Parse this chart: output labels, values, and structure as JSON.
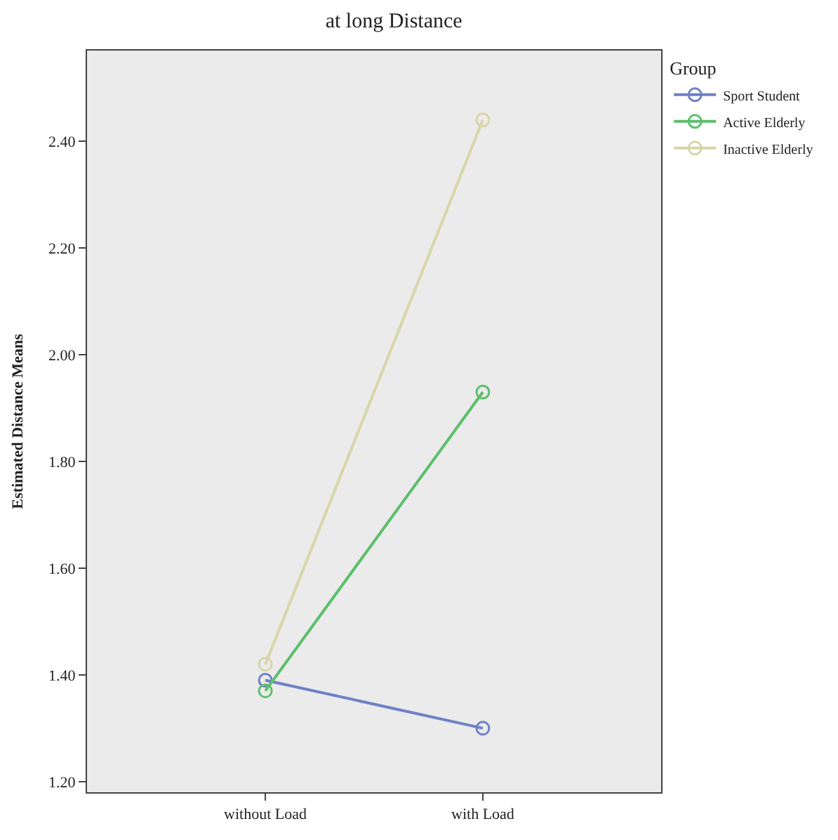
{
  "chart_data": {
    "type": "line",
    "title": "at long Distance",
    "ylabel": "Estimated Distance Means",
    "legend_title": "Group",
    "categories": [
      "without Load",
      "with Load"
    ],
    "series": [
      {
        "name": "Sport Student",
        "color": "#7080c8",
        "values": [
          1.39,
          1.3
        ]
      },
      {
        "name": "Active Elderly",
        "color": "#5cbf6a",
        "values": [
          1.37,
          1.93
        ]
      },
      {
        "name": "Inactive Elderly",
        "color": "#d8d6a8",
        "values": [
          1.42,
          2.44
        ]
      }
    ],
    "ylim": [
      1.18,
      2.57
    ],
    "yticks": [
      {
        "value": 1.2,
        "label": "1.20"
      },
      {
        "value": 1.4,
        "label": "1.40"
      },
      {
        "value": 1.6,
        "label": "1.60"
      },
      {
        "value": 1.8,
        "label": "1.80"
      },
      {
        "value": 2.0,
        "label": "2.00"
      },
      {
        "value": 2.2,
        "label": "2.20"
      },
      {
        "value": 2.4,
        "label": "2.40"
      }
    ],
    "grid": false,
    "legend": "top right",
    "marker": "circle",
    "line_style": "solid"
  }
}
